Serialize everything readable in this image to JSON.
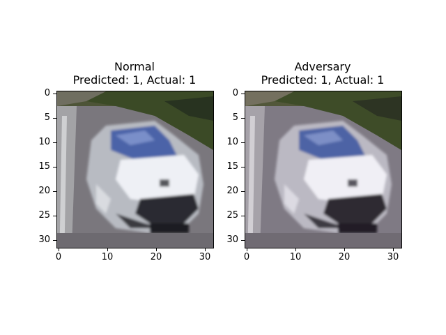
{
  "figure": {
    "panels": [
      {
        "title_line1": "Normal",
        "title_line2": "Predicted: 1, Actual: 1"
      },
      {
        "title_line1": "Adversary",
        "title_line2": "Predicted: 1, Actual: 1"
      }
    ],
    "axes": {
      "x_ticks": [
        "0",
        "10",
        "20",
        "30"
      ],
      "y_ticks": [
        "0",
        "5",
        "10",
        "15",
        "20",
        "25",
        "30"
      ],
      "x_range": [
        -0.5,
        31.5
      ],
      "y_range": [
        -0.5,
        31.5
      ]
    },
    "image_subject": "silver-car-photo",
    "colors": {
      "road": "#7d7a80",
      "foliage": "#3b4a26",
      "car_body": "#e6e9ef",
      "windshield": "#4b63a8",
      "shadow": "#2a2a30"
    }
  }
}
